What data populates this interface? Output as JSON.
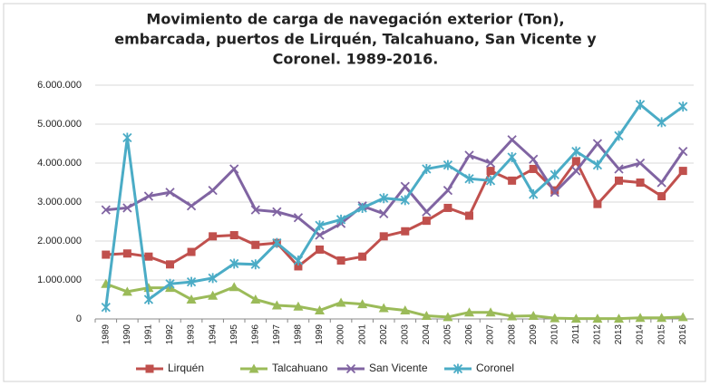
{
  "chart_data": {
    "type": "line",
    "title": [
      "Movimiento de carga de navegación exterior (Ton),",
      "embarcada, puertos de Lirquén, Talcahuano, San Vicente y",
      "Coronel. 1989-2016."
    ],
    "categories": [
      "1989",
      "1990",
      "1991",
      "1992",
      "1993",
      "1994",
      "1995",
      "1996",
      "1997",
      "1998",
      "1999",
      "2000",
      "2001",
      "2002",
      "2003",
      "2004",
      "2005",
      "2006",
      "2007",
      "2008",
      "2009",
      "2010",
      "2011",
      "2012",
      "2013",
      "2014",
      "2015",
      "2016"
    ],
    "series": [
      {
        "name": "Lirquén",
        "color": "#c0504d",
        "marker": "square",
        "values": [
          1650000,
          1680000,
          1600000,
          1400000,
          1720000,
          2120000,
          2150000,
          1900000,
          1950000,
          1350000,
          1780000,
          1500000,
          1600000,
          2120000,
          2250000,
          2520000,
          2850000,
          2650000,
          3800000,
          3550000,
          3850000,
          3300000,
          4050000,
          2950000,
          3550000,
          3500000,
          3150000,
          3800000
        ]
      },
      {
        "name": "Talcahuano",
        "color": "#9bbb59",
        "marker": "triangle",
        "values": [
          900000,
          700000,
          800000,
          800000,
          500000,
          600000,
          820000,
          500000,
          350000,
          320000,
          220000,
          420000,
          380000,
          280000,
          220000,
          80000,
          50000,
          170000,
          170000,
          70000,
          80000,
          20000,
          10000,
          10000,
          10000,
          30000,
          30000,
          50000
        ]
      },
      {
        "name": "San Vicente",
        "color": "#8064a2",
        "marker": "x",
        "values": [
          2800000,
          2850000,
          3150000,
          3250000,
          2900000,
          3300000,
          3850000,
          2800000,
          2750000,
          2600000,
          2150000,
          2450000,
          2900000,
          2700000,
          3400000,
          2750000,
          3300000,
          4200000,
          4000000,
          4600000,
          4100000,
          3250000,
          3800000,
          4500000,
          3850000,
          4000000,
          3500000,
          4300000
        ]
      },
      {
        "name": "Coronel",
        "color": "#4bacc6",
        "marker": "star",
        "values": [
          300000,
          4650000,
          500000,
          900000,
          950000,
          1050000,
          1420000,
          1400000,
          1950000,
          1500000,
          2400000,
          2550000,
          2850000,
          3100000,
          3050000,
          3850000,
          3950000,
          3600000,
          3550000,
          4150000,
          3200000,
          3700000,
          4300000,
          3950000,
          4700000,
          5500000,
          5050000,
          5450000
        ]
      }
    ],
    "ylim": [
      0,
      6000000
    ],
    "yticks": [
      0,
      {
        "value": 1000000,
        "label": "1.000.000"
      },
      {
        "value": 2000000,
        "label": "2.000.000"
      },
      {
        "value": 3000000,
        "label": "3.000.000"
      },
      {
        "value": 4000000,
        "label": "4.000.000"
      },
      {
        "value": 5000000,
        "label": "5.000.000"
      },
      {
        "value": 6000000,
        "label": "6.000.000"
      }
    ],
    "grid": true,
    "legend": "bottom"
  }
}
